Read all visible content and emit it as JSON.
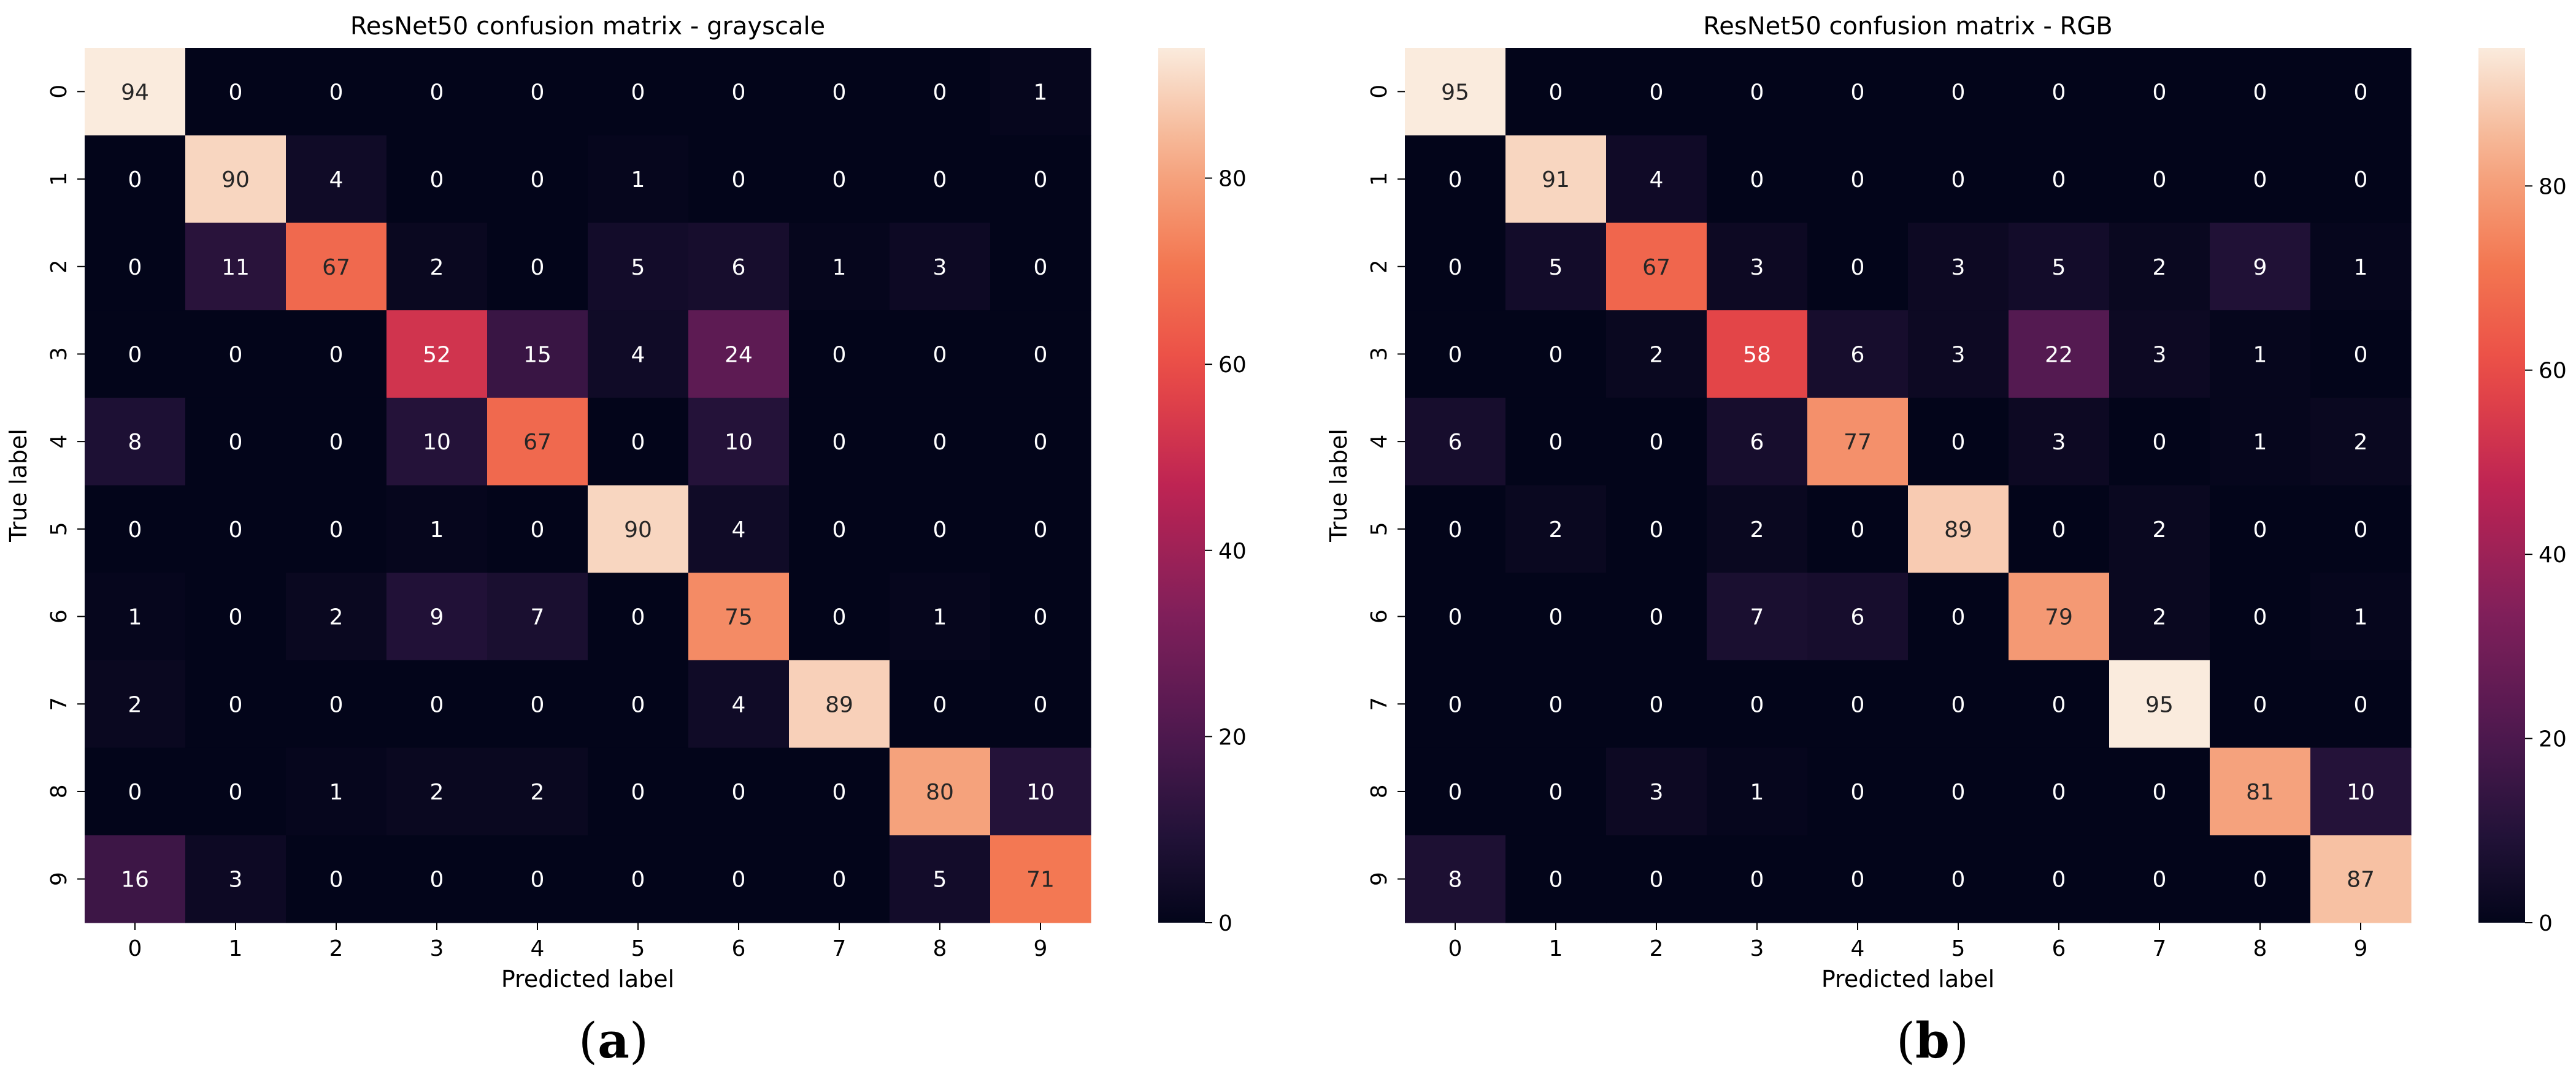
{
  "chart_data": [
    {
      "type": "heatmap",
      "title": "ResNet50 confusion matrix - grayscale",
      "xlabel": "Predicted label",
      "ylabel": "True label",
      "x_ticks": [
        "0",
        "1",
        "2",
        "3",
        "4",
        "5",
        "6",
        "7",
        "8",
        "9"
      ],
      "y_ticks": [
        "0",
        "1",
        "2",
        "3",
        "4",
        "5",
        "6",
        "7",
        "8",
        "9"
      ],
      "matrix": [
        [
          94,
          0,
          0,
          0,
          0,
          0,
          0,
          0,
          0,
          1
        ],
        [
          0,
          90,
          4,
          0,
          0,
          1,
          0,
          0,
          0,
          0
        ],
        [
          0,
          11,
          67,
          2,
          0,
          5,
          6,
          1,
          3,
          0
        ],
        [
          0,
          0,
          0,
          52,
          15,
          4,
          24,
          0,
          0,
          0
        ],
        [
          8,
          0,
          0,
          10,
          67,
          0,
          10,
          0,
          0,
          0
        ],
        [
          0,
          0,
          0,
          1,
          0,
          90,
          4,
          0,
          0,
          0
        ],
        [
          1,
          0,
          2,
          9,
          7,
          0,
          75,
          0,
          1,
          0
        ],
        [
          2,
          0,
          0,
          0,
          0,
          0,
          4,
          89,
          0,
          0
        ],
        [
          0,
          0,
          1,
          2,
          2,
          0,
          0,
          0,
          80,
          10
        ],
        [
          16,
          3,
          0,
          0,
          0,
          0,
          0,
          0,
          5,
          71
        ]
      ],
      "colorbar": {
        "min": 0,
        "max": 94,
        "ticks": [
          0,
          20,
          40,
          60,
          80
        ]
      },
      "colormap": "rocket",
      "panel_label": "a"
    },
    {
      "type": "heatmap",
      "title": "ResNet50 confusion matrix - RGB",
      "xlabel": "Predicted label",
      "ylabel": "True label",
      "x_ticks": [
        "0",
        "1",
        "2",
        "3",
        "4",
        "5",
        "6",
        "7",
        "8",
        "9"
      ],
      "y_ticks": [
        "0",
        "1",
        "2",
        "3",
        "4",
        "5",
        "6",
        "7",
        "8",
        "9"
      ],
      "matrix": [
        [
          95,
          0,
          0,
          0,
          0,
          0,
          0,
          0,
          0,
          0
        ],
        [
          0,
          91,
          4,
          0,
          0,
          0,
          0,
          0,
          0,
          0
        ],
        [
          0,
          5,
          67,
          3,
          0,
          3,
          5,
          2,
          9,
          1
        ],
        [
          0,
          0,
          2,
          58,
          6,
          3,
          22,
          3,
          1,
          0
        ],
        [
          6,
          0,
          0,
          6,
          77,
          0,
          3,
          0,
          1,
          2
        ],
        [
          0,
          2,
          0,
          2,
          0,
          89,
          0,
          2,
          0,
          0
        ],
        [
          0,
          0,
          0,
          7,
          6,
          0,
          79,
          2,
          0,
          1
        ],
        [
          0,
          0,
          0,
          0,
          0,
          0,
          0,
          95,
          0,
          0
        ],
        [
          0,
          0,
          3,
          1,
          0,
          0,
          0,
          0,
          81,
          10
        ],
        [
          8,
          0,
          0,
          0,
          0,
          0,
          0,
          0,
          0,
          87
        ]
      ],
      "colorbar": {
        "min": 0,
        "max": 95,
        "ticks": [
          0,
          20,
          40,
          60,
          80
        ]
      },
      "colormap": "rocket",
      "panel_label": "b"
    }
  ]
}
